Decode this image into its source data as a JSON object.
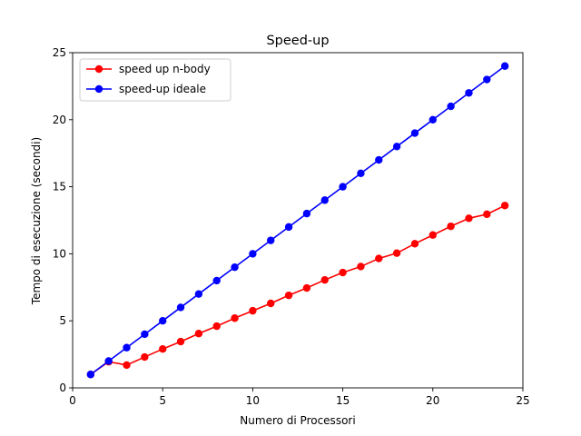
{
  "chart_data": {
    "type": "line",
    "title": "Speed-up",
    "xlabel": "Numero di Processori",
    "ylabel": "Tempo di esecuzione (secondi)",
    "xlim": [
      0,
      25
    ],
    "ylim": [
      0,
      25
    ],
    "xticks": [
      0,
      5,
      10,
      15,
      20,
      25
    ],
    "yticks": [
      0,
      5,
      10,
      15,
      20,
      25
    ],
    "grid": false,
    "legend_position": "top-left",
    "x": [
      1,
      2,
      3,
      4,
      5,
      6,
      7,
      8,
      9,
      10,
      11,
      12,
      13,
      14,
      15,
      16,
      17,
      18,
      19,
      20,
      21,
      22,
      23,
      24
    ],
    "series": [
      {
        "name": "speed up n-body",
        "color": "#ff0000",
        "marker": "circle",
        "values": [
          1.0,
          1.95,
          1.7,
          2.3,
          2.9,
          3.45,
          4.05,
          4.6,
          5.2,
          5.75,
          6.3,
          6.9,
          7.45,
          8.05,
          8.6,
          9.05,
          9.65,
          10.05,
          10.75,
          11.4,
          12.05,
          12.65,
          12.95,
          13.6
        ]
      },
      {
        "name": "speed-up ideale",
        "color": "#0000ff",
        "marker": "circle",
        "values": [
          1,
          2,
          3,
          4,
          5,
          6,
          7,
          8,
          9,
          10,
          11,
          12,
          13,
          14,
          15,
          16,
          17,
          18,
          19,
          20,
          21,
          22,
          23,
          24
        ]
      }
    ]
  }
}
